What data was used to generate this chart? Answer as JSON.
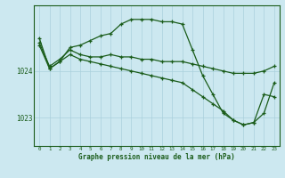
{
  "bg_color": "#cce8f0",
  "grid_color": "#aad0dc",
  "line_color": "#1a5c1a",
  "xlabel": "Graphe pression niveau de la mer (hPa)",
  "x_ticks": [
    0,
    1,
    2,
    3,
    4,
    5,
    6,
    7,
    8,
    9,
    10,
    11,
    12,
    13,
    14,
    15,
    16,
    17,
    18,
    19,
    20,
    21,
    22,
    23
  ],
  "xlim": [
    -0.5,
    23.5
  ],
  "ylim": [
    1022.4,
    1025.4
  ],
  "yticks": [
    1023,
    1024
  ],
  "series": [
    {
      "x": [
        0,
        1,
        2,
        3,
        4,
        5,
        6,
        7,
        8,
        9,
        10,
        11,
        12,
        13,
        14,
        15,
        16,
        17,
        18,
        19,
        20,
        21,
        22,
        23
      ],
      "y": [
        1024.7,
        1024.05,
        1024.2,
        1024.5,
        1024.55,
        1024.65,
        1024.75,
        1024.8,
        1025.0,
        1025.1,
        1025.1,
        1025.1,
        1025.05,
        1025.05,
        1025.0,
        1024.45,
        1023.9,
        1023.5,
        1023.1,
        1022.95,
        1022.85,
        1022.9,
        1023.5,
        1023.45
      ],
      "marker": "+"
    },
    {
      "x": [
        0,
        1,
        2,
        3,
        4,
        5,
        6,
        7,
        8,
        9,
        10,
        11,
        12,
        13,
        14,
        15,
        16,
        17,
        18,
        19,
        20,
        21,
        22,
        23
      ],
      "y": [
        1024.6,
        1024.1,
        1024.25,
        1024.45,
        1024.35,
        1024.3,
        1024.3,
        1024.35,
        1024.3,
        1024.3,
        1024.25,
        1024.25,
        1024.2,
        1024.2,
        1024.2,
        1024.15,
        1024.1,
        1024.05,
        1024.0,
        1023.95,
        1023.95,
        1023.95,
        1024.0,
        1024.1
      ],
      "marker": "+"
    },
    {
      "x": [
        0,
        1,
        2,
        3,
        4,
        5,
        6,
        7,
        8,
        9,
        10,
        11,
        12,
        13,
        14,
        15,
        16,
        17,
        18,
        19,
        20,
        21,
        22,
        23
      ],
      "y": [
        1024.55,
        1024.05,
        1024.2,
        1024.35,
        1024.25,
        1024.2,
        1024.15,
        1024.1,
        1024.05,
        1024.0,
        1023.95,
        1023.9,
        1023.85,
        1023.8,
        1023.75,
        1023.6,
        1023.45,
        1023.3,
        1023.15,
        1022.95,
        1022.85,
        1022.9,
        1023.1,
        1023.75
      ],
      "marker": "+"
    }
  ]
}
